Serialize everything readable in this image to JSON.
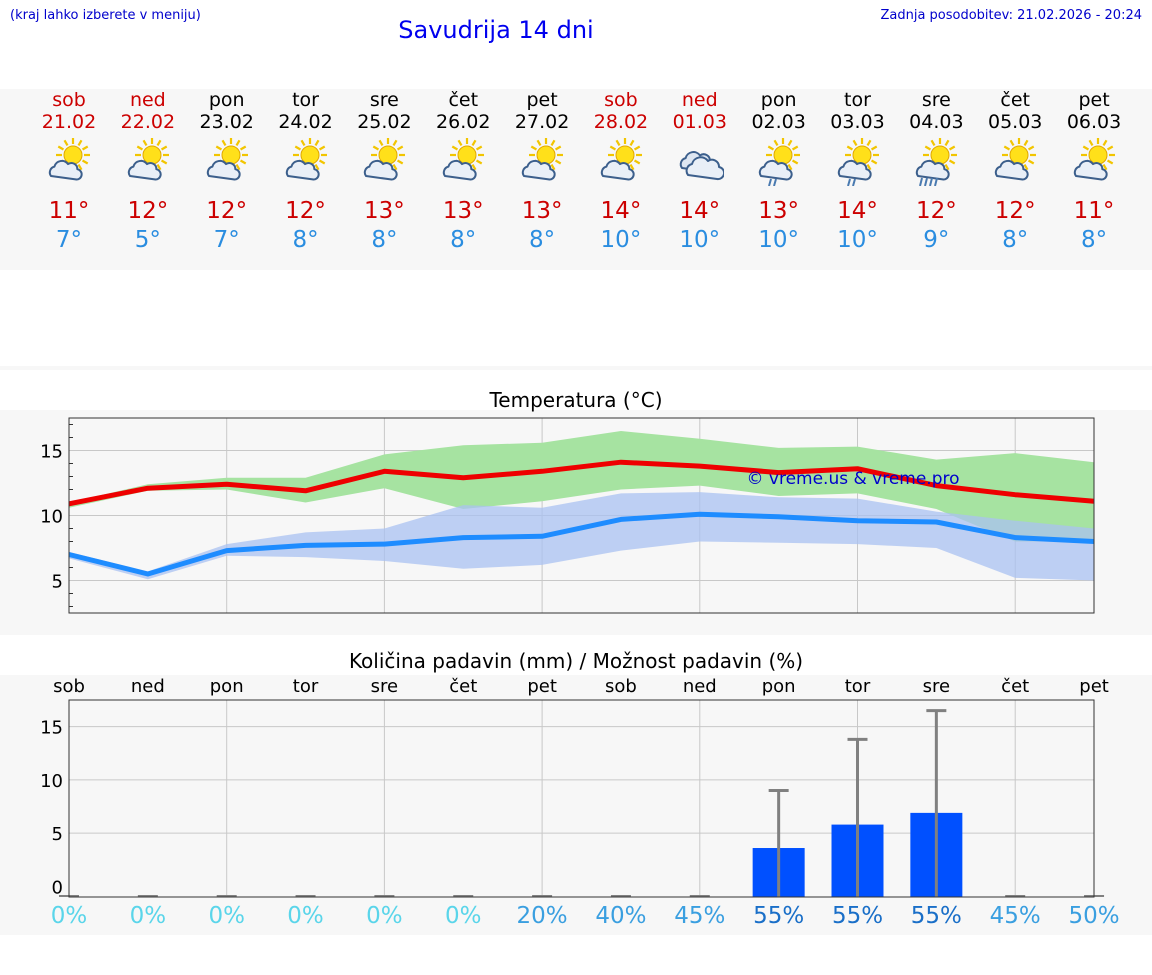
{
  "header": {
    "hint": "(kraj lahko izberete v meniju)",
    "title": "Savudrija 14 dni",
    "updated": "Zadnja posodobitev: 21.02.2026 - 20:24"
  },
  "days": [
    {
      "name": "sob",
      "date": "21.02",
      "weekend": true,
      "icon": "sun-cloud-icon",
      "max": "11°",
      "min": "7°"
    },
    {
      "name": "ned",
      "date": "22.02",
      "weekend": true,
      "icon": "sun-cloud-icon",
      "max": "12°",
      "min": "5°"
    },
    {
      "name": "pon",
      "date": "23.02",
      "weekend": false,
      "icon": "sun-cloud-icon",
      "max": "12°",
      "min": "7°"
    },
    {
      "name": "tor",
      "date": "24.02",
      "weekend": false,
      "icon": "sun-cloud-icon",
      "max": "12°",
      "min": "8°"
    },
    {
      "name": "sre",
      "date": "25.02",
      "weekend": false,
      "icon": "sun-cloud-icon",
      "max": "13°",
      "min": "8°"
    },
    {
      "name": "čet",
      "date": "26.02",
      "weekend": false,
      "icon": "sun-cloud-icon",
      "max": "13°",
      "min": "8°"
    },
    {
      "name": "pet",
      "date": "27.02",
      "weekend": false,
      "icon": "sun-cloud-icon",
      "max": "13°",
      "min": "8°"
    },
    {
      "name": "sob",
      "date": "28.02",
      "weekend": true,
      "icon": "sun-cloud-icon",
      "max": "14°",
      "min": "10°"
    },
    {
      "name": "ned",
      "date": "01.03",
      "weekend": true,
      "icon": "overcast-icon",
      "max": "14°",
      "min": "10°"
    },
    {
      "name": "pon",
      "date": "02.03",
      "weekend": false,
      "icon": "sun-cloud-light-rain-icon",
      "max": "13°",
      "min": "10°"
    },
    {
      "name": "tor",
      "date": "03.03",
      "weekend": false,
      "icon": "sun-cloud-light-rain-icon",
      "max": "14°",
      "min": "10°"
    },
    {
      "name": "sre",
      "date": "04.03",
      "weekend": false,
      "icon": "sun-cloud-rain-icon",
      "max": "12°",
      "min": "9°"
    },
    {
      "name": "čet",
      "date": "05.03",
      "weekend": false,
      "icon": "sun-cloud-icon",
      "max": "12°",
      "min": "8°"
    },
    {
      "name": "pet",
      "date": "06.03",
      "weekend": false,
      "icon": "sun-cloud-icon",
      "max": "11°",
      "min": "8°"
    }
  ],
  "chart_data": [
    {
      "type": "line",
      "title": "Temperatura (°C)",
      "watermark": "© vreme.us & vreme.pro",
      "xlabel": "",
      "ylabel": "",
      "ylim": [
        2.5,
        17.5
      ],
      "yticks": [
        5,
        10,
        15
      ],
      "colors": {
        "max_line": "#ee0000",
        "max_band": "#a6e3a1",
        "min_line": "#1e8cff",
        "min_band": "#a9c2f2",
        "overlap": "#7cc3a3"
      },
      "series": [
        {
          "name": "max",
          "values": [
            10.9,
            12.1,
            12.4,
            11.9,
            13.4,
            12.9,
            13.4,
            14.1,
            13.8,
            13.3,
            13.6,
            12.3,
            11.6,
            11.1
          ]
        },
        {
          "name": "max_upper",
          "values": [
            11.0,
            12.4,
            12.9,
            12.9,
            14.7,
            15.4,
            15.6,
            16.5,
            15.9,
            15.2,
            15.3,
            14.3,
            14.8,
            14.1
          ]
        },
        {
          "name": "max_lower",
          "values": [
            10.6,
            11.9,
            12.0,
            11.0,
            12.1,
            10.5,
            11.1,
            12.0,
            12.3,
            11.5,
            11.7,
            10.5,
            8.0,
            8.0
          ]
        },
        {
          "name": "min",
          "values": [
            7.0,
            5.5,
            7.3,
            7.7,
            7.8,
            8.3,
            8.4,
            9.7,
            10.1,
            9.9,
            9.6,
            9.5,
            8.3,
            8.0
          ]
        },
        {
          "name": "min_upper",
          "values": [
            7.2,
            5.7,
            7.8,
            8.7,
            9.0,
            10.8,
            10.6,
            11.7,
            11.8,
            11.4,
            11.3,
            10.3,
            9.6,
            9.0
          ]
        },
        {
          "name": "min_lower",
          "values": [
            6.7,
            5.1,
            6.9,
            6.8,
            6.5,
            5.9,
            6.2,
            7.3,
            8.0,
            7.9,
            7.8,
            7.5,
            5.2,
            5.0
          ]
        }
      ]
    },
    {
      "type": "bar",
      "title": "Količina padavin (mm) / Možnost padavin (%)",
      "categories": [
        "sob",
        "ned",
        "pon",
        "tor",
        "sre",
        "čet",
        "pet",
        "sob",
        "ned",
        "pon",
        "tor",
        "sre",
        "čet",
        "pet"
      ],
      "ylim": [
        -1,
        17.5
      ],
      "yticks": [
        0,
        5,
        10,
        15
      ],
      "colors": {
        "bar": "#0050ff",
        "error": "#808080"
      },
      "series": [
        {
          "name": "mm",
          "values": [
            0,
            0,
            0,
            0,
            0,
            0,
            0,
            0,
            0,
            3.6,
            5.8,
            6.9,
            0,
            0
          ]
        },
        {
          "name": "mm_max",
          "values": [
            0,
            0,
            0,
            0,
            0,
            0,
            0,
            0,
            0,
            9.0,
            13.8,
            16.5,
            0,
            0
          ]
        }
      ],
      "probability": [
        "0%",
        "0%",
        "0%",
        "0%",
        "0%",
        "0%",
        "20%",
        "40%",
        "45%",
        "55%",
        "55%",
        "55%",
        "45%",
        "50%"
      ],
      "probability_colors": [
        "#5ad5ea",
        "#5ad5ea",
        "#5ad5ea",
        "#5ad5ea",
        "#5ad5ea",
        "#5ad5ea",
        "#3a9fe0",
        "#3a9fe0",
        "#3a9fe0",
        "#1a6fc8",
        "#1a6fc8",
        "#1a6fc8",
        "#3a9fe0",
        "#3a9fe0"
      ]
    }
  ]
}
